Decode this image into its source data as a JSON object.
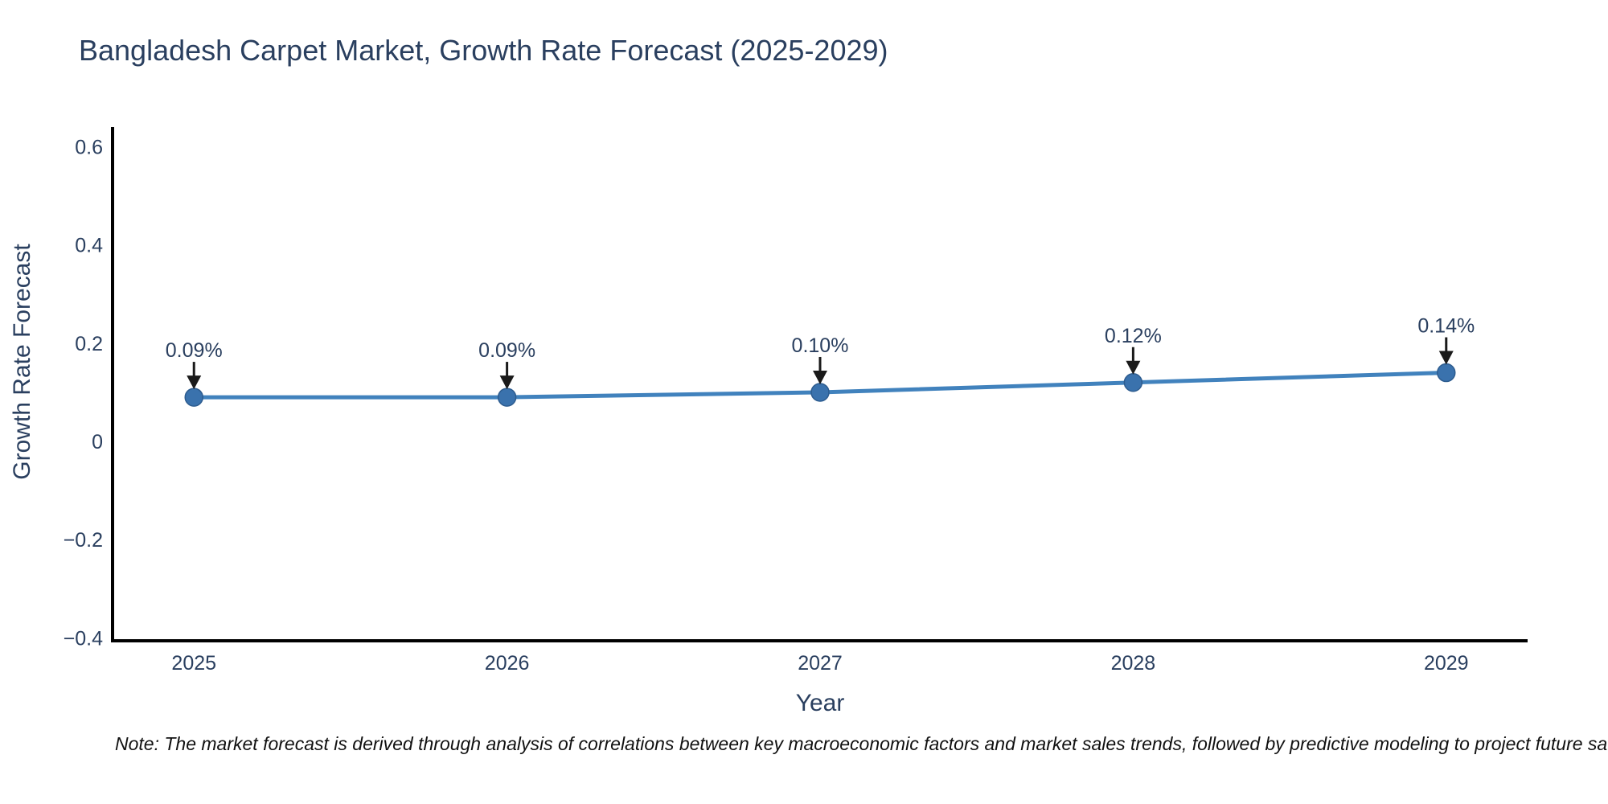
{
  "title": "Bangladesh Carpet Market, Growth Rate Forecast (2025-2029)",
  "note": "Note: The market forecast is derived through analysis of correlations between key macroeconomic factors and market sales trends, followed by predictive modeling to project future sa",
  "chart_data": {
    "type": "line",
    "title": "Bangladesh Carpet Market, Growth Rate Forecast (2025-2029)",
    "xlabel": "Year",
    "ylabel": "Growth Rate Forecast",
    "x": [
      2025,
      2026,
      2027,
      2028,
      2029
    ],
    "series": [
      {
        "name": "Growth Rate Forecast",
        "values": [
          0.09,
          0.09,
          0.1,
          0.12,
          0.14
        ],
        "point_labels": [
          "0.09%",
          "0.09%",
          "0.10%",
          "0.12%",
          "0.14%"
        ]
      }
    ],
    "xtick_labels": [
      "2025",
      "2026",
      "2027",
      "2028",
      "2029"
    ],
    "yticks": [
      -0.4,
      -0.2,
      0,
      0.2,
      0.4,
      0.6
    ],
    "ytick_labels": [
      "−0.4",
      "−0.2",
      "0",
      "0.2",
      "0.4",
      "0.6"
    ],
    "xlim": [
      2024.74,
      2029.26
    ],
    "ylim": [
      -0.406,
      0.637
    ],
    "grid": false,
    "legend": false,
    "colors": {
      "line": "#4182bd",
      "marker_fill": "#3a72ad",
      "marker_edge": "#2d5c8f",
      "annotation_arrow": "#1a1a1a",
      "axis_line": "#000000",
      "text": "#2a3f5f"
    }
  }
}
